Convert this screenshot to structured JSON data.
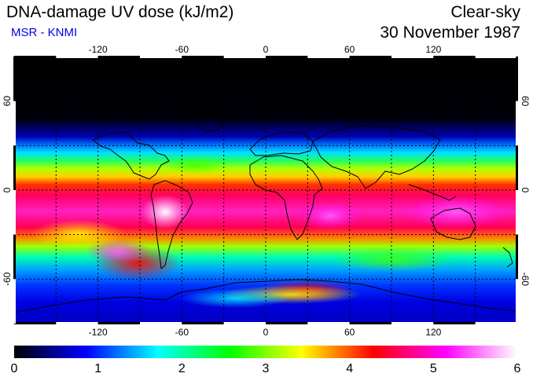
{
  "header": {
    "title": "DNA-damage UV dose (kJ/m2)",
    "source": "MSR - KNMI",
    "condition": "Clear-sky",
    "date": "30 November 1987"
  },
  "map": {
    "projection": "equirectangular",
    "lon_ticks": [
      "-120",
      "-60",
      "0",
      "60",
      "120"
    ],
    "lat_ticks": [
      "60",
      "0",
      "-60"
    ],
    "lon_tick_values": [
      -120,
      -60,
      0,
      60,
      120
    ],
    "lat_tick_values": [
      60,
      0,
      -60
    ],
    "grid_spacing_deg": 30,
    "grid_style": "dotted"
  },
  "colorbar": {
    "labels": [
      "0",
      "1",
      "2",
      "3",
      "4",
      "5",
      "6"
    ],
    "min": 0,
    "max": 6,
    "colors": [
      "#000000",
      "#0000ff",
      "#00ffff",
      "#00ff00",
      "#ffff00",
      "#ff0000",
      "#ff00ff",
      "#ffffff"
    ]
  }
}
